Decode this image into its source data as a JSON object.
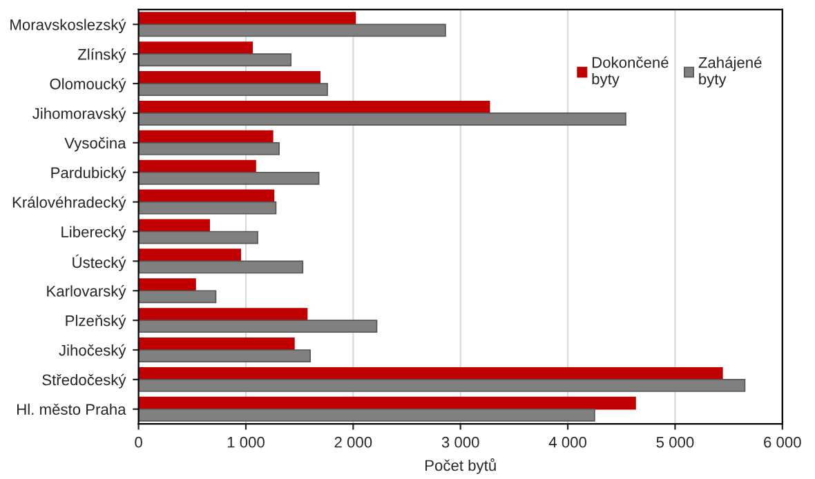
{
  "chart_data": {
    "type": "bar",
    "orientation": "horizontal",
    "xlabel": "Počet bytů",
    "categories": [
      "Moravskoslezský",
      "Zlínský",
      "Olomoucký",
      "Jihomoravský",
      "Vysočina",
      "Pardubický",
      "Královéhradecký",
      "Liberecký",
      "Ústecký",
      "Karlovarský",
      "Plzeňský",
      "Jihočeský",
      "Středočeský",
      "Hl. město Praha"
    ],
    "series": [
      {
        "name": "Dokončené\nbyty",
        "color": "#c00000",
        "values": [
          2020,
          1060,
          1690,
          3270,
          1250,
          1090,
          1260,
          660,
          950,
          530,
          1570,
          1450,
          5440,
          4630
        ]
      },
      {
        "name": "Zahájené\nbyty",
        "color": "#808080",
        "values": [
          2860,
          1420,
          1760,
          4540,
          1310,
          1680,
          1280,
          1110,
          1530,
          720,
          2220,
          1600,
          5650,
          4250
        ]
      }
    ],
    "xlim": [
      0,
      6000
    ],
    "xticks": [
      0,
      {
        "value": 1000,
        "label": "1 000"
      },
      {
        "value": 2000,
        "label": "2 000"
      },
      {
        "value": 3000,
        "label": "3 000"
      },
      {
        "value": 4000,
        "label": "4 000"
      },
      {
        "value": 5000,
        "label": "5 000"
      },
      {
        "value": 6000,
        "label": "6 000"
      }
    ],
    "grid": "x",
    "legend": "top right"
  }
}
